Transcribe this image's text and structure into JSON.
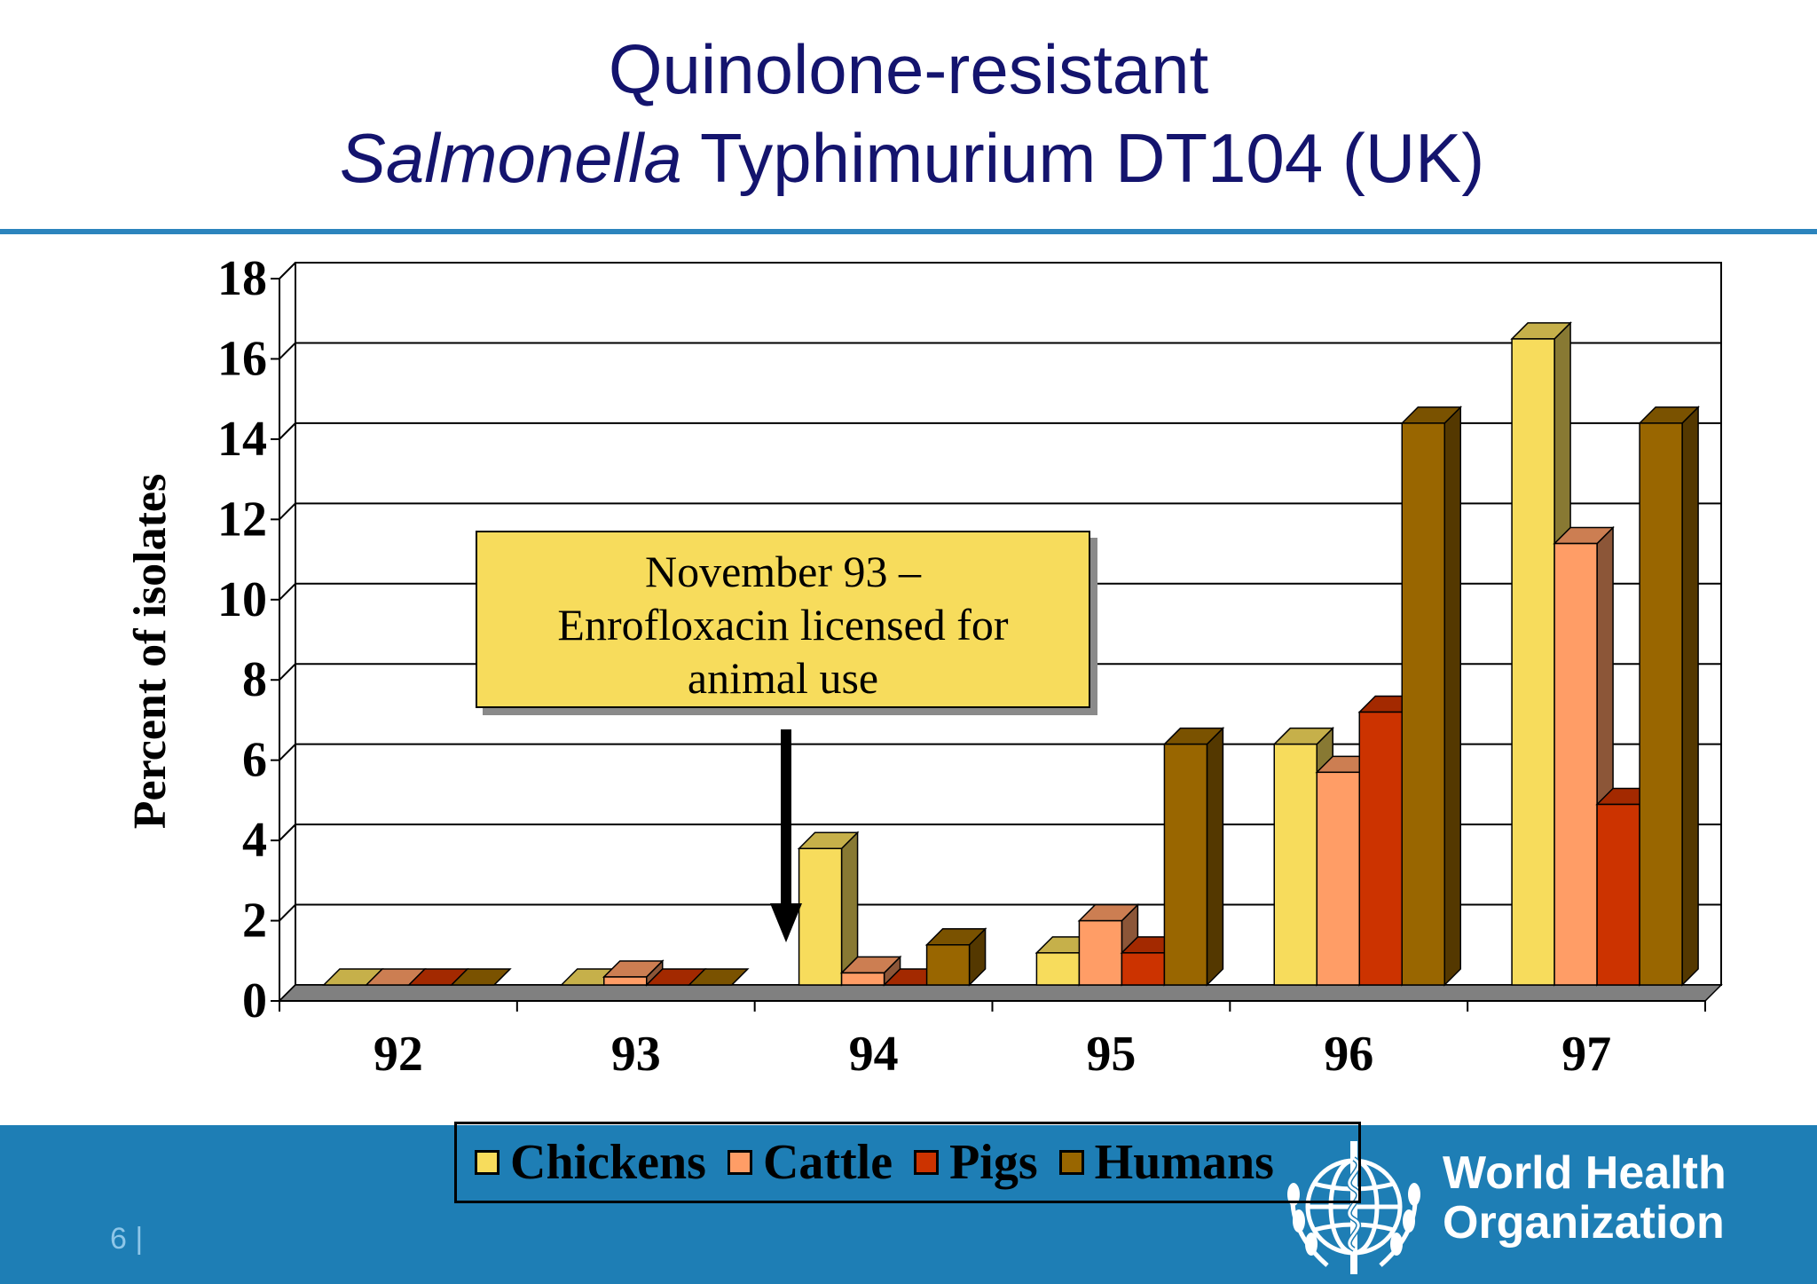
{
  "slide": {
    "title_line1": "Quinolone-resistant",
    "title_italic": "Salmonella",
    "title_rest": " Typhimurium DT104 (UK)",
    "page_number": "6 |",
    "org_name_line1": "World Health",
    "org_name_line2": "Organization"
  },
  "colors": {
    "title": "#14146e",
    "rule": "#2c84bd",
    "footer": "#1e7eb5",
    "Chickens": "#f7dc5c",
    "Cattle": "#ff9d66",
    "Pigs": "#cc3300",
    "Humans": "#996600"
  },
  "annotation": {
    "line1": "November 93 –",
    "line2": "Enrofloxacin licensed for",
    "line3": "animal use"
  },
  "chart_data": {
    "type": "bar",
    "style": "3d-clustered",
    "title": "",
    "xlabel": "",
    "ylabel": "Percent of isolates",
    "ylim": [
      0,
      18
    ],
    "yticks": [
      0,
      2,
      4,
      6,
      8,
      10,
      12,
      14,
      16,
      18
    ],
    "grid": true,
    "legend_position": "bottom",
    "categories": [
      "92",
      "93",
      "94",
      "95",
      "96",
      "97"
    ],
    "series": [
      {
        "name": "Chickens",
        "values": [
          0,
          0,
          3.4,
          0.8,
          6,
          16.1
        ]
      },
      {
        "name": "Cattle",
        "values": [
          0,
          0.2,
          0.3,
          1.6,
          5.3,
          11
        ]
      },
      {
        "name": "Pigs",
        "values": [
          0,
          0,
          0,
          0.8,
          6.8,
          4.5
        ]
      },
      {
        "name": "Humans",
        "values": [
          0,
          0,
          1,
          6,
          14,
          14
        ]
      }
    ]
  }
}
